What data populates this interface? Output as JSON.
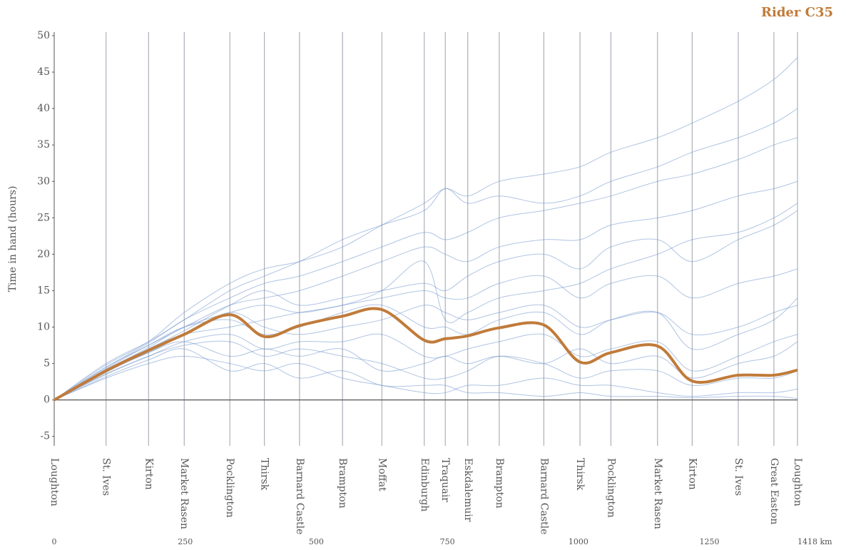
{
  "chart_data": {
    "type": "line",
    "title": "Rider C35",
    "y_label": "Time in hand (hours)",
    "controls": [
      "Loughton",
      "St. Ives",
      "Kirton",
      "Market Rasen",
      "Pocklington",
      "Thirsk",
      "Barnard Castle",
      "Brampton",
      "Moffat",
      "Edinburgh",
      "Traquair",
      "Eskdalemuir",
      "Brampton",
      "Barnard Castle",
      "Thirsk",
      "Pocklington",
      "Market Rasen",
      "Kirton",
      "St. Ives",
      "Great Easton",
      "Loughton"
    ],
    "x": [
      0,
      99,
      180,
      248,
      335,
      401,
      468,
      550,
      625,
      706,
      746,
      789,
      849,
      934,
      1003,
      1062,
      1151,
      1217,
      1305,
      1373,
      1418
    ],
    "xlim": [
      0,
      1418
    ],
    "xticks": [
      0,
      250,
      500,
      750,
      1000,
      1250,
      {
        "value": 1418,
        "label": "1418 km"
      }
    ],
    "ylim": [
      -6.3,
      50
    ],
    "yticks": [
      -5,
      0,
      5,
      10,
      15,
      20,
      25,
      30,
      35,
      40,
      45,
      50
    ],
    "others_color": "#6f94cc",
    "others": [
      [
        0,
        4.5,
        7.5,
        10,
        13,
        14,
        15,
        17,
        19,
        21,
        20,
        19,
        21,
        22,
        22,
        24,
        25,
        26,
        28,
        29,
        30
      ],
      [
        0,
        3.5,
        6,
        7.5,
        8,
        6,
        7,
        6,
        5,
        3,
        3,
        4,
        6,
        5,
        3,
        4,
        4,
        2,
        3,
        3,
        4
      ],
      [
        0,
        5,
        8,
        11,
        15,
        17,
        19,
        22,
        24,
        26,
        29,
        27,
        28,
        27,
        28,
        30,
        32,
        34,
        36,
        38,
        40
      ],
      [
        0,
        4,
        7,
        9,
        10,
        11,
        12,
        13,
        15,
        19,
        11,
        12,
        14,
        15,
        16,
        18,
        20,
        22,
        23,
        25,
        27
      ],
      [
        0,
        3,
        5,
        6,
        5,
        4,
        5,
        3,
        2,
        1,
        1,
        2,
        2,
        3,
        2,
        2,
        1,
        0.5,
        1,
        1,
        1.5
      ],
      [
        0,
        4,
        6.5,
        9,
        12,
        10,
        9,
        10,
        11,
        13,
        12,
        11,
        12,
        13,
        10,
        11,
        12,
        9,
        10,
        12,
        13
      ],
      [
        0,
        4.2,
        7,
        9.5,
        13,
        15,
        13,
        14,
        15,
        16,
        15,
        17,
        19,
        20,
        18,
        21,
        22,
        19,
        22,
        24,
        26
      ],
      [
        0,
        3.8,
        6.5,
        8,
        6,
        7,
        6,
        7,
        4,
        5,
        6,
        5,
        6,
        5,
        7,
        5,
        6,
        3,
        5,
        6,
        8
      ],
      [
        0,
        4.5,
        7.8,
        11,
        14,
        16,
        17,
        19,
        21,
        23,
        22,
        23,
        25,
        26,
        27,
        28,
        30,
        31,
        33,
        35,
        36
      ],
      [
        0,
        3.6,
        6,
        8,
        9,
        7,
        8,
        8,
        9,
        6,
        6,
        7,
        8,
        9,
        6,
        7,
        8,
        4,
        6,
        8,
        9
      ],
      [
        0,
        4.1,
        7.2,
        10,
        12,
        13,
        12,
        13,
        14,
        15,
        14,
        14,
        16,
        17,
        14,
        16,
        17,
        14,
        16,
        17,
        18
      ],
      [
        0,
        4.8,
        8,
        12,
        16,
        18,
        19,
        21,
        24,
        27,
        29,
        28,
        30,
        31,
        32,
        34,
        36,
        38,
        41,
        44,
        47
      ],
      [
        0,
        3.2,
        5.5,
        7,
        4,
        5,
        3,
        4,
        2,
        2,
        2,
        1,
        1,
        0.5,
        1,
        0.5,
        0.5,
        0.3,
        0.5,
        0.5,
        0.2
      ],
      [
        0,
        4.3,
        7.5,
        10,
        11,
        9,
        10,
        12,
        13,
        10,
        10,
        9,
        11,
        12,
        9,
        11,
        12,
        7,
        9,
        11,
        14
      ]
    ],
    "rider": {
      "color": "#c07b3a",
      "values": [
        0,
        4.0,
        6.8,
        9.0,
        11.7,
        8.7,
        10.2,
        11.5,
        12.4,
        8.2,
        8.4,
        8.8,
        9.9,
        10.3,
        5.2,
        6.5,
        7.4,
        2.6,
        3.4,
        3.4,
        4.1
      ]
    }
  }
}
